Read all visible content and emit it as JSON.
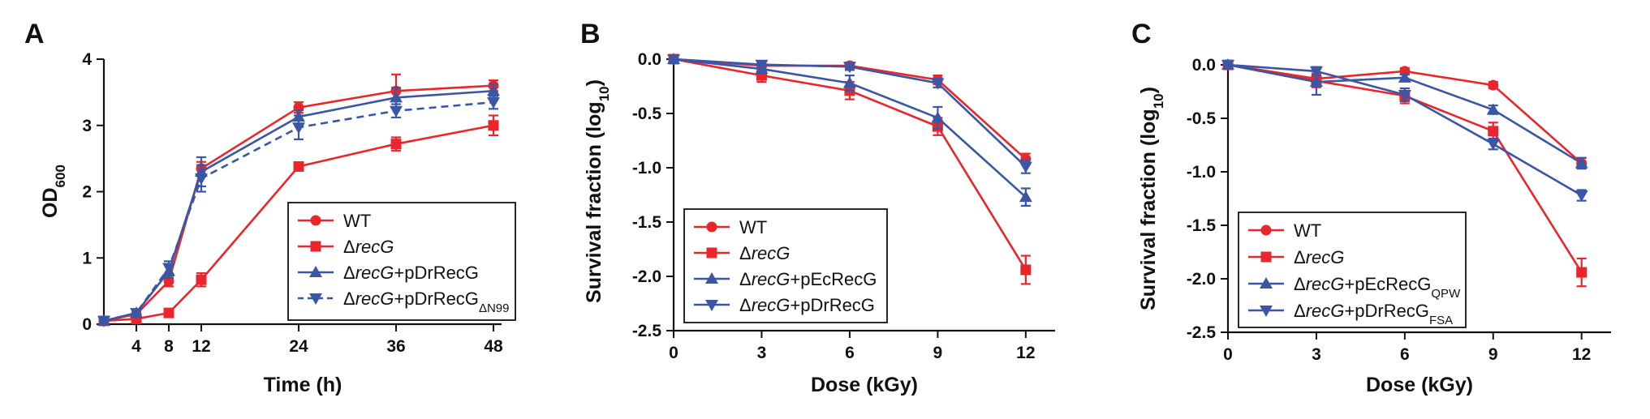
{
  "colors": {
    "wt": "#e8262b",
    "recg": "#e8262b",
    "blue": "#3a56a5"
  },
  "chart_data": [
    {
      "panel": "A",
      "type": "line",
      "ylabel_main": "OD",
      "ylabel_sub": "600",
      "xlabel": "Time (h)",
      "xlim": [
        0,
        49
      ],
      "ylim": [
        0,
        4
      ],
      "xticks": [
        "4",
        "8",
        "12",
        "24",
        "36",
        "48"
      ],
      "yticks": [
        "0",
        "1",
        "2",
        "3",
        "4"
      ],
      "series": [
        {
          "name": "WT",
          "legend_main": "WT",
          "legend_italic": "",
          "legend_post": "",
          "legend_sub": "",
          "marker": "circle",
          "color": "#e8262b",
          "dash": false,
          "x": [
            0,
            4,
            8,
            12,
            24,
            36,
            48
          ],
          "y": [
            0.05,
            0.15,
            0.65,
            2.35,
            3.27,
            3.52,
            3.6
          ],
          "err": [
            0.02,
            0.05,
            0.08,
            0.1,
            0.08,
            0.25,
            0.08
          ]
        },
        {
          "name": "ΔrecG",
          "legend_main": "Δ",
          "legend_italic": "recG",
          "legend_post": "",
          "legend_sub": "",
          "marker": "square",
          "color": "#e8262b",
          "dash": false,
          "x": [
            0,
            4,
            8,
            12,
            24,
            36,
            48
          ],
          "y": [
            0.05,
            0.08,
            0.17,
            0.67,
            2.38,
            2.72,
            3.0
          ],
          "err": [
            0.02,
            0.02,
            0.03,
            0.1,
            0.05,
            0.1,
            0.15
          ]
        },
        {
          "name": "ΔrecG+pDrRecG",
          "legend_main": "Δ",
          "legend_italic": "recG",
          "legend_post": "+pDrRecG",
          "legend_sub": "",
          "marker": "triangle-up",
          "color": "#3a56a5",
          "dash": false,
          "x": [
            0,
            4,
            8,
            12,
            24,
            36,
            48
          ],
          "y": [
            0.05,
            0.17,
            0.8,
            2.3,
            3.13,
            3.42,
            3.52
          ],
          "err": [
            0.02,
            0.05,
            0.1,
            0.22,
            0.1,
            0.15,
            0.1
          ]
        },
        {
          "name": "ΔrecG+pDrRecGΔN99",
          "legend_main": "Δ",
          "legend_italic": "recG",
          "legend_post": "+pDrRecG",
          "legend_sub": "ΔN99",
          "marker": "triangle-down",
          "color": "#3a56a5",
          "dash": true,
          "x": [
            0,
            4,
            8,
            12,
            24,
            36,
            48
          ],
          "y": [
            0.05,
            0.17,
            0.85,
            2.2,
            2.97,
            3.22,
            3.35
          ],
          "err": [
            0.02,
            0.05,
            0.1,
            0.2,
            0.18,
            0.1,
            0.1
          ]
        }
      ]
    },
    {
      "panel": "B",
      "type": "line",
      "ylabel_main": "Survival fraction (log",
      "ylabel_sub": "10",
      "ylabel_post": ")",
      "xlabel": "Dose (kGy)",
      "xlim": [
        0,
        13
      ],
      "ylim": [
        -2.5,
        0
      ],
      "xticks": [
        "0",
        "3",
        "6",
        "9",
        "12"
      ],
      "yticks": [
        "0.0",
        "-0.5",
        "-1.0",
        "-1.5",
        "-2.0",
        "-2.5"
      ],
      "series": [
        {
          "name": "WT",
          "legend_main": "WT",
          "legend_italic": "",
          "legend_post": "",
          "legend_sub": "",
          "marker": "circle",
          "color": "#e8262b",
          "dash": false,
          "x": [
            0,
            3,
            6,
            9,
            12
          ],
          "y": [
            0.0,
            -0.06,
            -0.06,
            -0.19,
            -0.92
          ],
          "err": [
            0.0,
            0.03,
            0.03,
            0.04,
            0.05
          ]
        },
        {
          "name": "ΔrecG",
          "legend_main": "Δ",
          "legend_italic": "recG",
          "legend_post": "",
          "legend_sub": "",
          "marker": "square",
          "color": "#e8262b",
          "dash": false,
          "x": [
            0,
            3,
            6,
            9,
            12
          ],
          "y": [
            0.0,
            -0.15,
            -0.29,
            -0.62,
            -1.94
          ],
          "err": [
            0.0,
            0.06,
            0.08,
            0.08,
            0.13
          ]
        },
        {
          "name": "ΔrecG+pEcRecG",
          "legend_main": "Δ",
          "legend_italic": "recG",
          "legend_post": "+pEcRecG",
          "legend_sub": "",
          "marker": "triangle-up",
          "color": "#3a56a5",
          "dash": false,
          "x": [
            0,
            3,
            6,
            9,
            12
          ],
          "y": [
            0.0,
            -0.09,
            -0.22,
            -0.54,
            -1.27
          ],
          "err": [
            0.0,
            0.04,
            0.07,
            0.1,
            0.08
          ]
        },
        {
          "name": "ΔrecG+pDrRecG",
          "legend_main": "Δ",
          "legend_italic": "recG",
          "legend_post": "+pDrRecG",
          "legend_sub": "",
          "marker": "triangle-down",
          "color": "#3a56a5",
          "dash": false,
          "x": [
            0,
            3,
            6,
            9,
            12
          ],
          "y": [
            0.0,
            -0.05,
            -0.07,
            -0.22,
            -0.99
          ],
          "err": [
            0.0,
            0.03,
            0.03,
            0.04,
            0.06
          ]
        }
      ]
    },
    {
      "panel": "C",
      "type": "line",
      "ylabel_main": "Survival fraction (log",
      "ylabel_sub": "10",
      "ylabel_post": ")",
      "xlabel": "Dose (kGy)",
      "xlim": [
        0,
        13
      ],
      "ylim": [
        -2.5,
        0
      ],
      "xticks": [
        "0",
        "3",
        "6",
        "9",
        "12"
      ],
      "yticks": [
        "0.0",
        "-0.5",
        "-1.0",
        "-1.5",
        "-2.0",
        "-2.5"
      ],
      "series": [
        {
          "name": "WT",
          "legend_main": "WT",
          "legend_italic": "",
          "legend_post": "",
          "legend_sub": "",
          "marker": "circle",
          "color": "#e8262b",
          "dash": false,
          "x": [
            0,
            3,
            6,
            9,
            12
          ],
          "y": [
            0.0,
            -0.13,
            -0.06,
            -0.19,
            -0.92
          ],
          "err": [
            0.0,
            0.05,
            0.03,
            0.03,
            0.05
          ]
        },
        {
          "name": "ΔrecG",
          "legend_main": "Δ",
          "legend_italic": "recG",
          "legend_post": "",
          "legend_sub": "",
          "marker": "square",
          "color": "#e8262b",
          "dash": false,
          "x": [
            0,
            3,
            6,
            9,
            12
          ],
          "y": [
            0.0,
            -0.15,
            -0.29,
            -0.62,
            -1.94
          ],
          "err": [
            0.0,
            0.06,
            0.07,
            0.08,
            0.13
          ]
        },
        {
          "name": "ΔrecG+pEcRecGQPW",
          "legend_main": "Δ",
          "legend_italic": "recG",
          "legend_post": "+pEcRecG",
          "legend_sub": "QPW",
          "marker": "triangle-up",
          "color": "#3a56a5",
          "dash": false,
          "x": [
            0,
            3,
            6,
            9,
            12
          ],
          "y": [
            0.0,
            -0.16,
            -0.12,
            -0.42,
            -0.92
          ],
          "err": [
            0.0,
            0.12,
            0.03,
            0.04,
            0.05
          ]
        },
        {
          "name": "ΔrecG+pDrRecGFSA",
          "legend_main": "Δ",
          "legend_italic": "recG",
          "legend_post": "+pDrRecG",
          "legend_sub": "FSA",
          "marker": "triangle-down",
          "color": "#3a56a5",
          "dash": false,
          "x": [
            0,
            3,
            6,
            9,
            12
          ],
          "y": [
            0.0,
            -0.06,
            -0.28,
            -0.74,
            -1.22
          ],
          "err": [
            0.0,
            0.04,
            0.06,
            0.05,
            0.05
          ]
        }
      ]
    }
  ]
}
